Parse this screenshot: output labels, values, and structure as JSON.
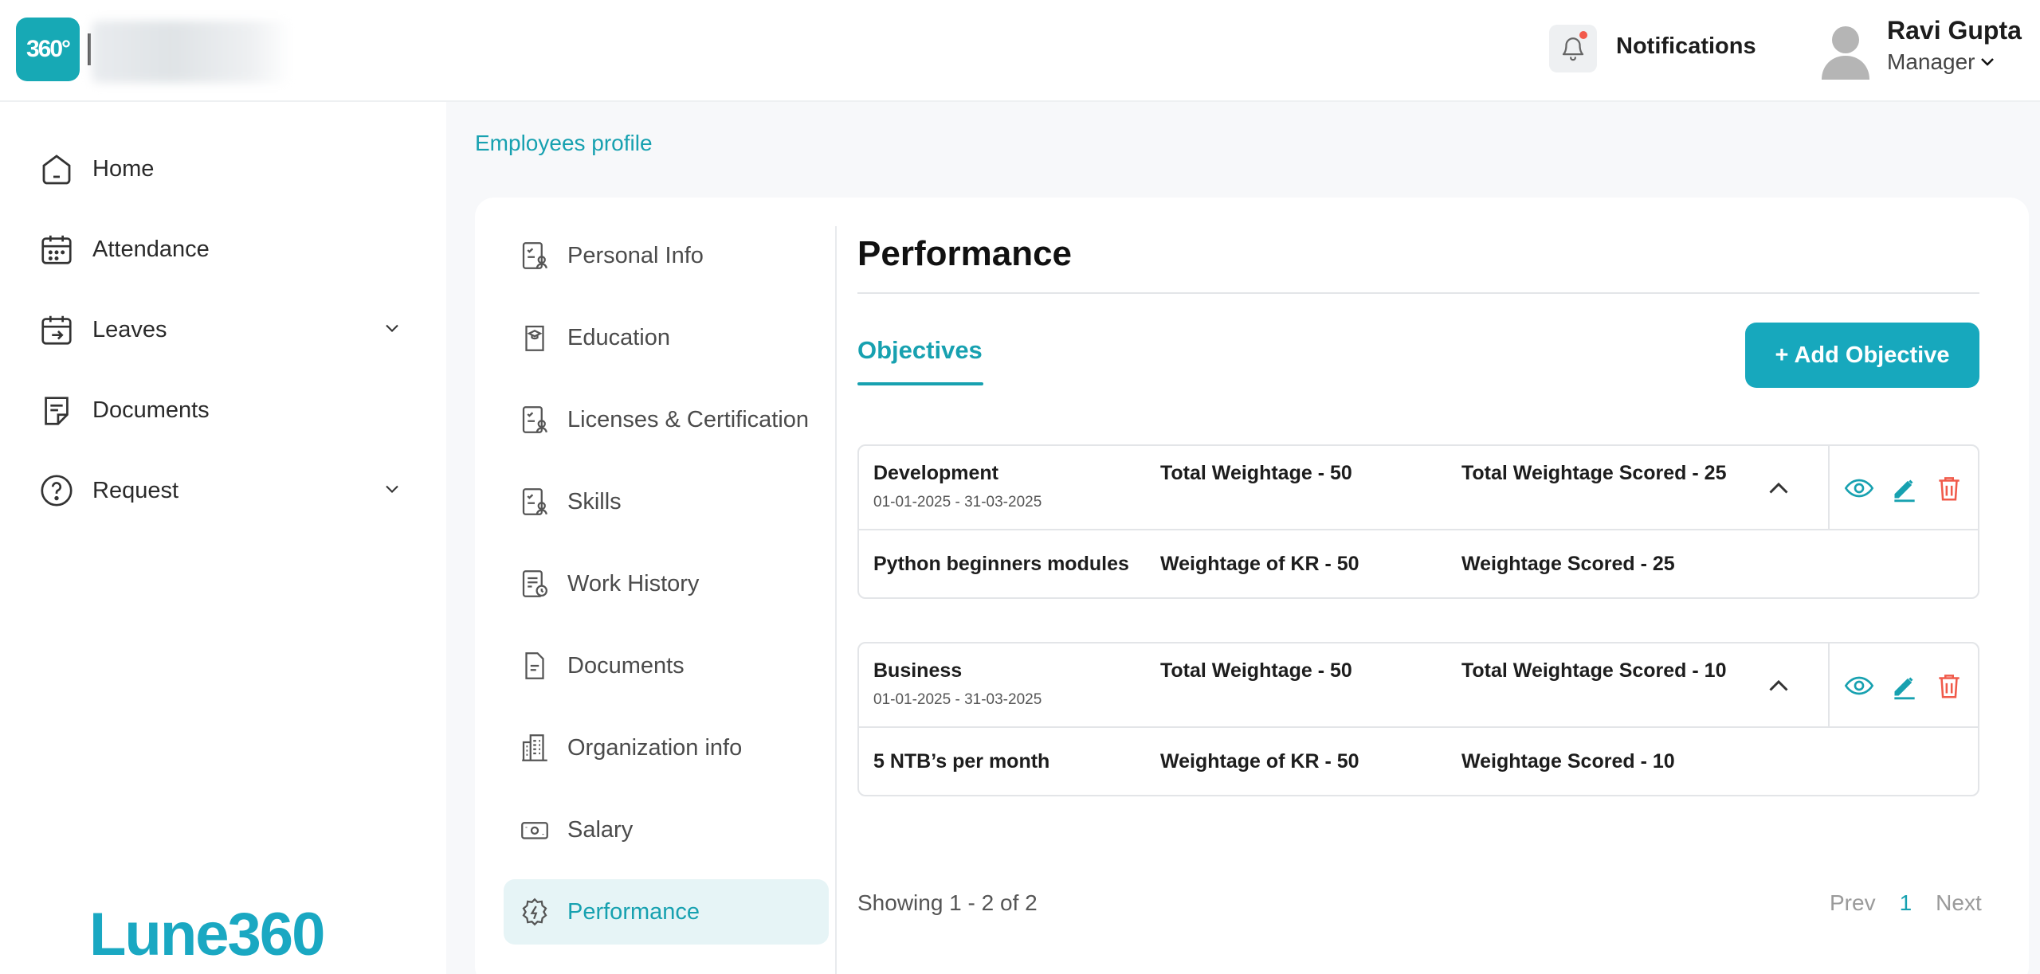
{
  "header": {
    "logo_text": "360°",
    "notifications_label": "Notifications",
    "user": {
      "name": "Ravi Gupta",
      "role": "Manager"
    }
  },
  "sidebar": {
    "items": [
      {
        "label": "Home",
        "icon": "home-icon"
      },
      {
        "label": "Attendance",
        "icon": "calendar-icon"
      },
      {
        "label": "Leaves",
        "icon": "leave-calendar-icon",
        "expandable": true
      },
      {
        "label": "Documents",
        "icon": "document-icon"
      },
      {
        "label": "Request",
        "icon": "question-icon",
        "expandable": true
      }
    ],
    "brand": "Lune360"
  },
  "breadcrumb": "Employees profile",
  "profile_nav": {
    "items": [
      {
        "label": "Personal Info",
        "icon": "id-card-icon"
      },
      {
        "label": "Education",
        "icon": "graduation-cap-icon"
      },
      {
        "label": "Licenses & Certification",
        "icon": "certificate-icon"
      },
      {
        "label": "Skills",
        "icon": "skills-icon"
      },
      {
        "label": "Work History",
        "icon": "work-history-icon"
      },
      {
        "label": "Documents",
        "icon": "file-icon"
      },
      {
        "label": "Organization info",
        "icon": "building-icon"
      },
      {
        "label": "Salary",
        "icon": "money-icon"
      },
      {
        "label": "Performance",
        "icon": "performance-icon",
        "active": true
      }
    ]
  },
  "main": {
    "title": "Performance",
    "tab": "Objectives",
    "add_button": "+ Add Objective",
    "objectives": [
      {
        "name": "Development",
        "dates": "01-01-2025 - 31-03-2025",
        "total_weightage": "Total Weightage - 50",
        "total_weightage_scored": "Total Weightage Scored - 25",
        "kr_name": "Python beginners modules",
        "kr_weightage": "Weightage of KR - 50",
        "kr_scored": "Weightage Scored - 25"
      },
      {
        "name": "Business",
        "dates": "01-01-2025 - 31-03-2025",
        "total_weightage": "Total Weightage - 50",
        "total_weightage_scored": "Total Weightage Scored - 10",
        "kr_name": "5 NTB’s per month",
        "kr_weightage": "Weightage of KR - 50",
        "kr_scored": "Weightage Scored - 10"
      }
    ],
    "showing": "Showing 1 - 2 of 2",
    "pagination": {
      "prev": "Prev",
      "current": "1",
      "next": "Next"
    }
  },
  "colors": {
    "accent": "#17a1b0",
    "button": "#17a8bd",
    "danger": "#f05a4a"
  }
}
